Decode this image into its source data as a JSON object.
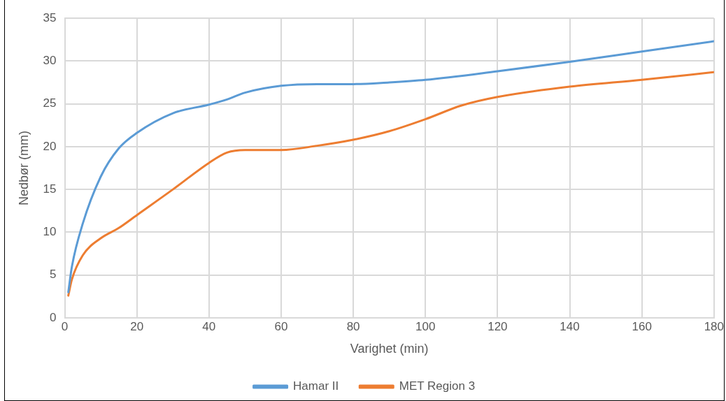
{
  "chart_data": {
    "type": "line",
    "xlabel": "Varighet (min)",
    "ylabel": "Nedbør (mm)",
    "xlim": [
      0,
      180
    ],
    "xticks": [
      0,
      20,
      40,
      60,
      80,
      100,
      120,
      140,
      160,
      180
    ],
    "ylim": [
      0,
      35
    ],
    "yticks": [
      0,
      5,
      10,
      15,
      20,
      25,
      30,
      35
    ],
    "grid": true,
    "legend": "bottom",
    "marker": "none",
    "line_style": "solid",
    "series": [
      {
        "name": "Hamar II",
        "color": "#5b9bd5",
        "x": [
          1,
          2,
          5,
          10,
          15,
          20,
          30,
          40,
          45,
          50,
          60,
          70,
          80,
          90,
          100,
          120,
          140,
          160,
          180
        ],
        "values": [
          3.0,
          6.0,
          11,
          16.5,
          19.8,
          21.6,
          23.9,
          24.9,
          25.5,
          26.3,
          27.1,
          27.3,
          27.3,
          27.5,
          27.8,
          28.8,
          29.9,
          31.1,
          32.3
        ]
      },
      {
        "name": "MET Region 3",
        "color": "#ed7d31",
        "x": [
          1,
          2,
          5,
          10,
          15,
          20,
          30,
          40,
          45,
          50,
          60,
          70,
          80,
          90,
          100,
          110,
          120,
          140,
          160,
          180
        ],
        "values": [
          2.6,
          4.5,
          7.3,
          9.3,
          10.5,
          12.0,
          15.0,
          18.1,
          19.3,
          19.6,
          19.6,
          20.1,
          20.8,
          21.8,
          23.2,
          24.8,
          25.8,
          27.0,
          27.8,
          28.7
        ]
      }
    ]
  }
}
